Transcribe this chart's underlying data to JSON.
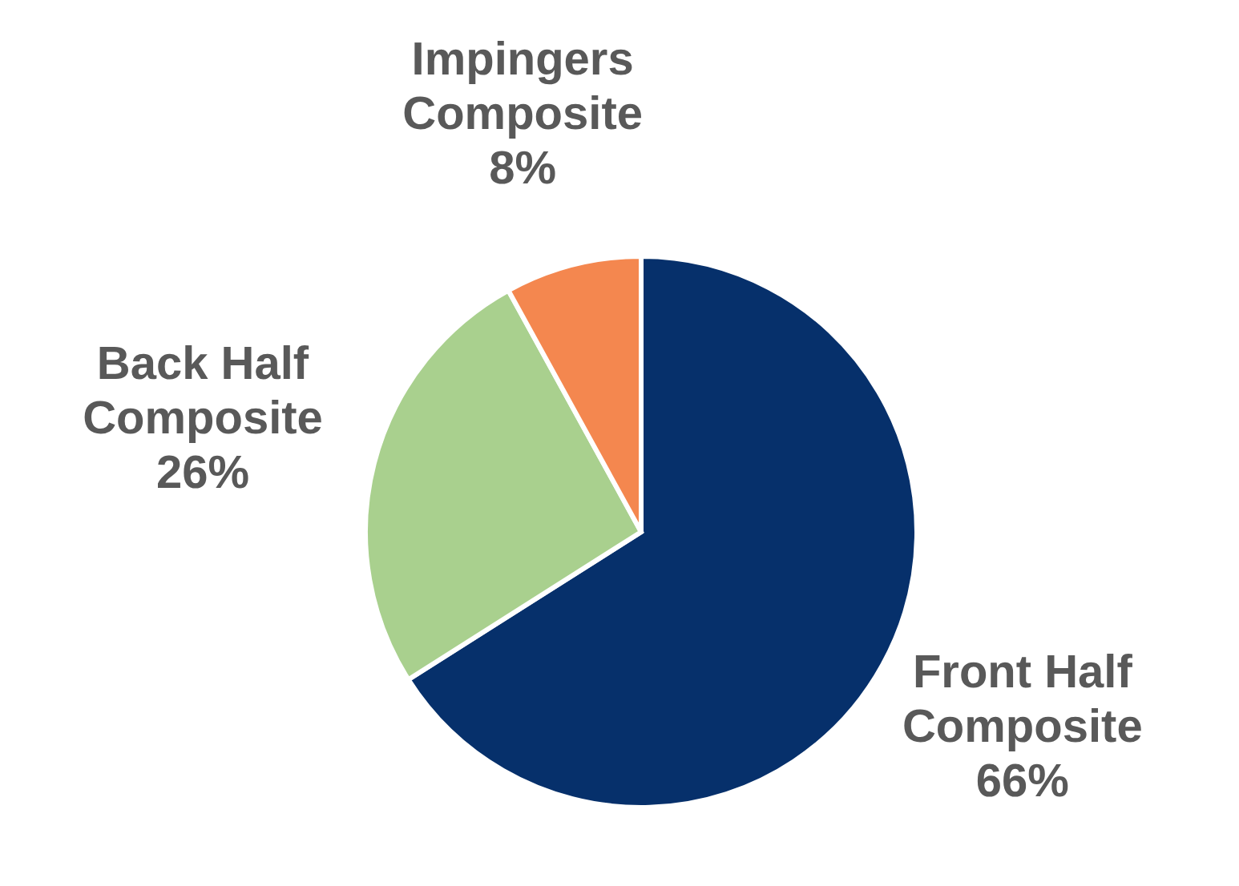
{
  "chart_data": {
    "type": "pie",
    "categories": [
      "Front Half Composite",
      "Back Half Composite",
      "Impingers Composite"
    ],
    "values": [
      66,
      26,
      8
    ],
    "colors": [
      "#06306b",
      "#a9d08e",
      "#f4874f"
    ],
    "value_labels": [
      "66%",
      "26%",
      "8%"
    ]
  }
}
